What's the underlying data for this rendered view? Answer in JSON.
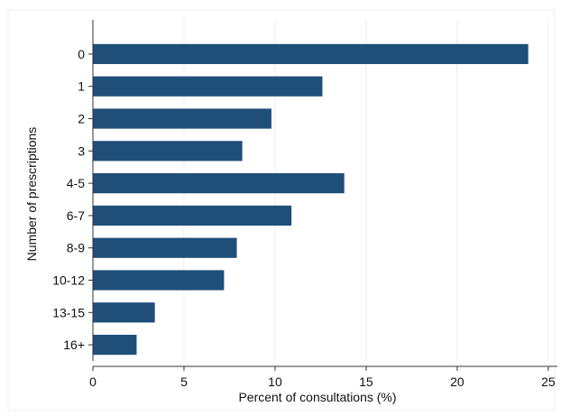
{
  "chart_data": {
    "type": "bar",
    "orientation": "horizontal",
    "title": "",
    "xlabel": "Percent of consultations (%)",
    "ylabel": "Number of prescriptions",
    "categories": [
      "0",
      "1",
      "2",
      "3",
      "4-5",
      "6-7",
      "8-9",
      "10-12",
      "13-15",
      "16+"
    ],
    "values": [
      23.9,
      12.6,
      9.8,
      8.2,
      13.8,
      10.9,
      7.9,
      7.2,
      3.4,
      2.4
    ],
    "xlim": [
      0,
      25.5
    ],
    "xticks": [
      0,
      5,
      10,
      15,
      20,
      25
    ],
    "grid": "vertical",
    "legend": "none",
    "colors": {
      "bar": "#1f4e79",
      "grid": "#e8edf2",
      "axis": "#333333",
      "background": "#ffffff"
    }
  }
}
